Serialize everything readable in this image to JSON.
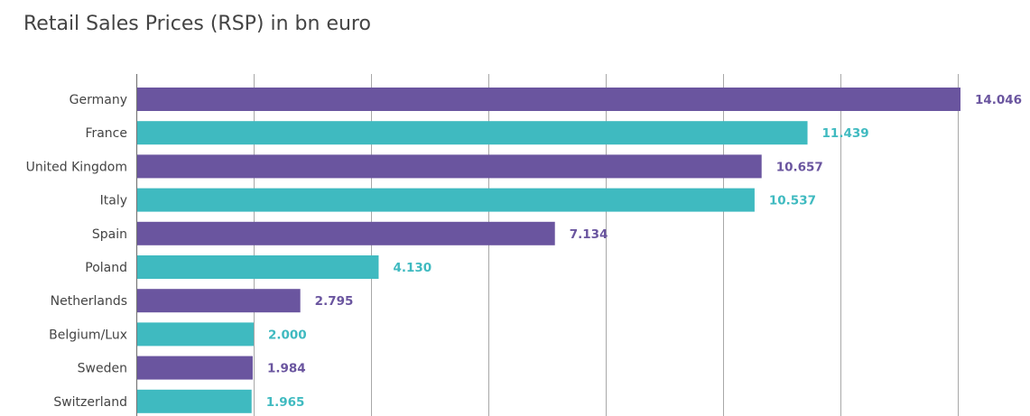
{
  "chart_data": {
    "type": "bar",
    "orientation": "horizontal",
    "title": "Retail Sales Prices (RSP) in bn euro",
    "categories": [
      "Germany",
      "France",
      "United Kingdom",
      "Italy",
      "Spain",
      "Poland",
      "Netherlands",
      "Belgium/Lux",
      "Sweden",
      "Switzerland"
    ],
    "values": [
      14.046,
      11.439,
      10.657,
      10.537,
      7.134,
      4.13,
      2.795,
      2.0,
      1.984,
      1.965
    ],
    "value_labels": [
      "14.046",
      "11.439",
      "10.657",
      "10.537",
      "7.134",
      "4.130",
      "2.795",
      "2.000",
      "1.984",
      "1.965"
    ],
    "xlim": [
      0,
      14
    ],
    "x_gridlines": [
      0,
      2,
      4,
      6,
      8,
      10,
      12,
      14
    ],
    "grid": true,
    "colors": [
      "#6a559f",
      "#3fbac0"
    ]
  }
}
